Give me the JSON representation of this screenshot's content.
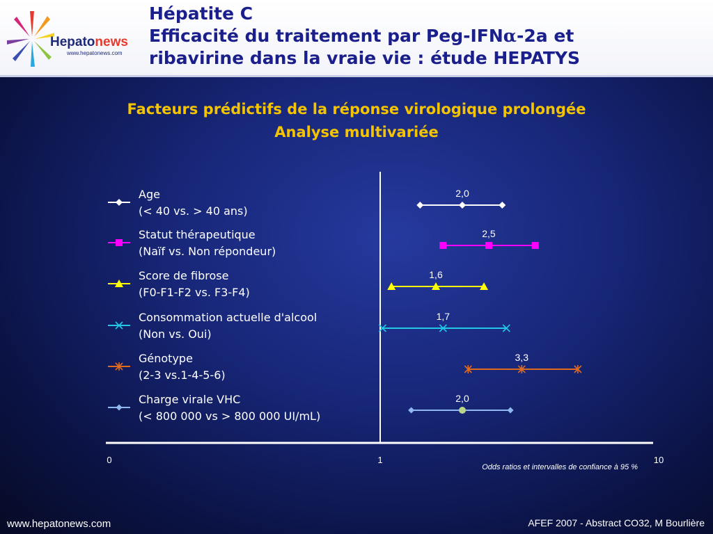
{
  "header": {
    "logo_text_1": "Hepato",
    "logo_text_2": "news",
    "logo_url": "www.hepatonews.com",
    "title_line1": "Hépatite C",
    "title_line2_prefix": "Efficacité du traitement par Peg-IFN",
    "title_line2_alpha": "α",
    "title_line2_suffix": "-2a et",
    "title_line3": "ribavirine dans la vraie vie : étude HEPATYS"
  },
  "subtitle_line1": "Facteurs prédictifs de la réponse virologique prolongée",
  "subtitle_line2": "Analyse multivariée",
  "chart_data": {
    "type": "forest",
    "xticks": [
      "0",
      "1",
      "10"
    ],
    "note": "Odds ratios et intervalles de confiance à 95 %",
    "rows": [
      {
        "label1": "Age",
        "label2": "(< 40 vs. > 40 ans)",
        "or": 2.0,
        "or_label": "2,0",
        "lo": 1.4,
        "hi": 2.8,
        "color": "#ffffff",
        "marker": "diamond"
      },
      {
        "label1": "Statut thérapeutique",
        "label2": "(Naïf vs. Non répondeur)",
        "or": 2.5,
        "or_label": "2,5",
        "lo": 1.7,
        "hi": 3.7,
        "color": "#ff00ff",
        "marker": "square"
      },
      {
        "label1": "Score de fibrose",
        "label2": "(F0-F1-F2 vs. F3-F4)",
        "or": 1.6,
        "or_label": "1,6",
        "lo": 1.1,
        "hi": 2.4,
        "color": "#ffff00",
        "marker": "triangle"
      },
      {
        "label1": "Consommation actuelle d'alcool",
        "label2": "(Non vs. Oui)",
        "or": 1.7,
        "or_label": "1,7",
        "lo": 1.02,
        "hi": 2.9,
        "color": "#22c8e6",
        "marker": "x"
      },
      {
        "label1": "Génotype",
        "label2": "(2-3 vs.1-4-5-6)",
        "or": 3.3,
        "or_label": "3,3",
        "lo": 2.1,
        "hi": 5.3,
        "color": "#e06a1e",
        "marker": "asterisk"
      },
      {
        "label1": "Charge virale VHC",
        "label2": "(< 800 000 vs > 800 000 UI/mL)",
        "or": 2.0,
        "or_label": "2,0",
        "lo": 1.3,
        "hi": 3.0,
        "color": "#8fb8f0",
        "marker": "diamond-small"
      }
    ]
  },
  "footer": {
    "left": "www.hepatonews.com",
    "right": "AFEF 2007 - Abstract CO32, M Bourlière"
  }
}
